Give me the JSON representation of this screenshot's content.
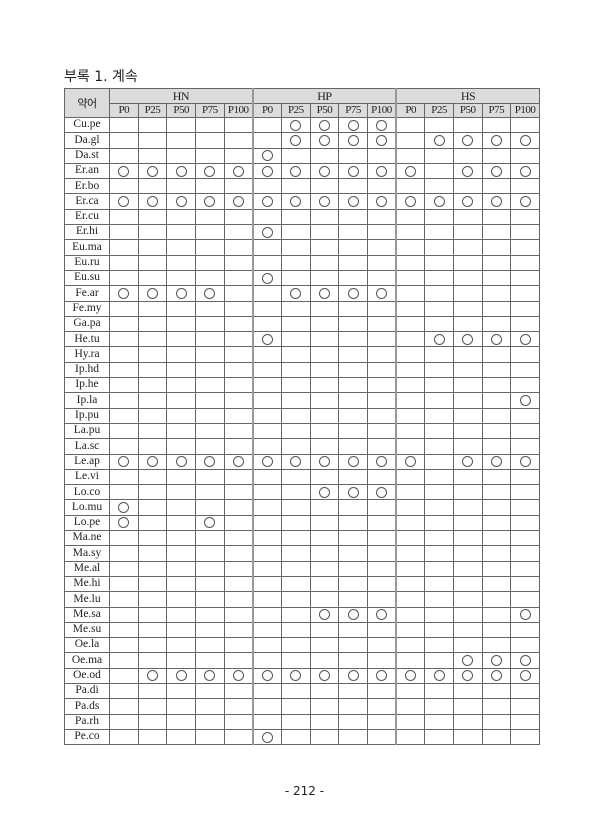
{
  "title": "부록 1. 계속",
  "page_number": "- 212 -",
  "table": {
    "abbr_header": "약어",
    "groups": [
      "HN",
      "HP",
      "HS"
    ],
    "subcolumns": [
      "P0",
      "P25",
      "P50",
      "P75",
      "P100"
    ],
    "mark_symbol": "circle",
    "rows": [
      {
        "name": "Cu.pe",
        "marks": "000000111100000"
      },
      {
        "name": "Da.gl",
        "marks": "000000111101111"
      },
      {
        "name": "Da.st",
        "marks": "000001000000000"
      },
      {
        "name": "Er.an",
        "marks": "111111111110111"
      },
      {
        "name": "Er.bo",
        "marks": "000000000000000"
      },
      {
        "name": "Er.ca",
        "marks": "111111111111111"
      },
      {
        "name": "Er.cu",
        "marks": "000000000000000"
      },
      {
        "name": "Er.hi",
        "marks": "000001000000000"
      },
      {
        "name": "Eu.ma",
        "marks": "000000000000000"
      },
      {
        "name": "Eu.ru",
        "marks": "000000000000000"
      },
      {
        "name": "Eu.su",
        "marks": "000001000000000"
      },
      {
        "name": "Fe.ar",
        "marks": "111100111100000"
      },
      {
        "name": "Fe.my",
        "marks": "000000000000000"
      },
      {
        "name": "Ga.pa",
        "marks": "000000000000000"
      },
      {
        "name": "He.tu",
        "marks": "000001000001111"
      },
      {
        "name": "Hy.ra",
        "marks": "000000000000000"
      },
      {
        "name": "Ip.hd",
        "marks": "000000000000000"
      },
      {
        "name": "Ip.he",
        "marks": "000000000000000"
      },
      {
        "name": "Ip.la",
        "marks": "000000000000001"
      },
      {
        "name": "Ip.pu",
        "marks": "000000000000000"
      },
      {
        "name": "La.pu",
        "marks": "000000000000000"
      },
      {
        "name": "La.sc",
        "marks": "000000000000000"
      },
      {
        "name": "Le.ap",
        "marks": "111111111110111"
      },
      {
        "name": "Le.vi",
        "marks": "000000000000000"
      },
      {
        "name": "Lo.co",
        "marks": "000000011100000"
      },
      {
        "name": "Lo.mu",
        "marks": "100000000000000"
      },
      {
        "name": "Lo.pe",
        "marks": "100100000000000"
      },
      {
        "name": "Ma.ne",
        "marks": "000000000000000"
      },
      {
        "name": "Ma.sy",
        "marks": "000000000000000"
      },
      {
        "name": "Me.al",
        "marks": "000000000000000"
      },
      {
        "name": "Me.hi",
        "marks": "000000000000000"
      },
      {
        "name": "Me.lu",
        "marks": "000000000000000"
      },
      {
        "name": "Me.sa",
        "marks": "000000011100001"
      },
      {
        "name": "Me.su",
        "marks": "000000000000000"
      },
      {
        "name": "Oe.la",
        "marks": "000000000000000"
      },
      {
        "name": "Oe.ma",
        "marks": "000000000000111"
      },
      {
        "name": "Oe.od",
        "marks": "011111111111111"
      },
      {
        "name": "Pa.di",
        "marks": "000000000000000"
      },
      {
        "name": "Pa.ds",
        "marks": "000000000000000"
      },
      {
        "name": "Pa.rh",
        "marks": "000000000000000"
      },
      {
        "name": "Pe.co",
        "marks": "000001000000000"
      }
    ]
  }
}
